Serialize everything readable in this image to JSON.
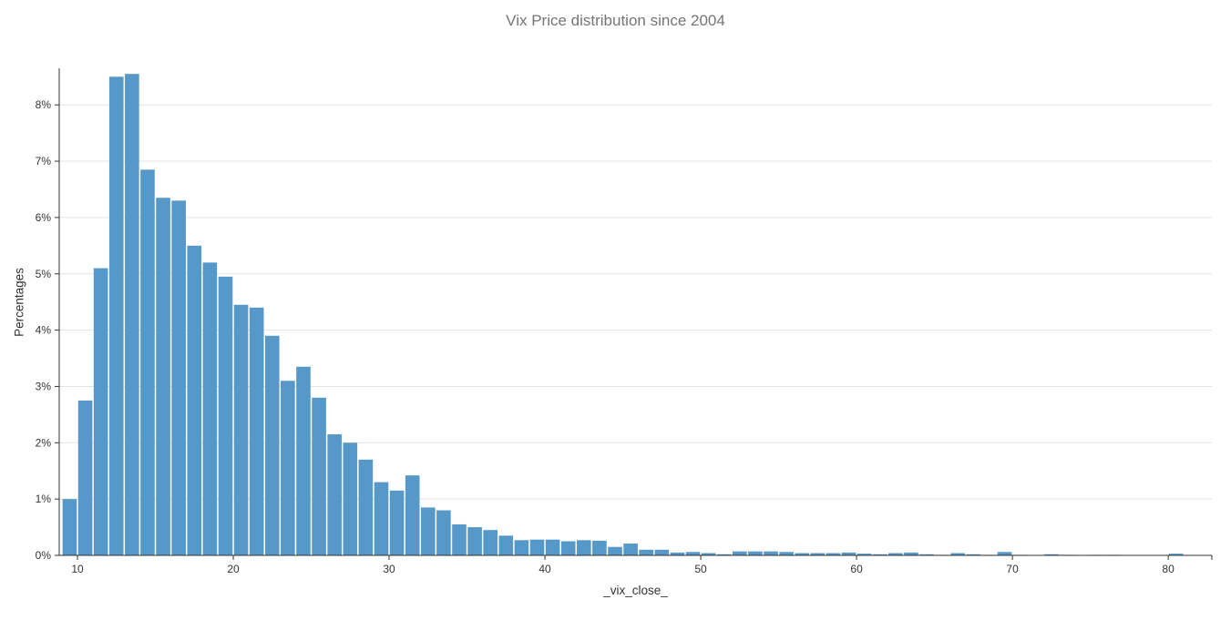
{
  "page": {
    "background": "#ffffff"
  },
  "chart_data": {
    "type": "bar",
    "subtype": "histogram",
    "title": "Vix Price distribution since 2004",
    "xlabel": "_vix_close_",
    "ylabel": "Percentages",
    "legend": "none",
    "grid": "horizontal",
    "bins_start": 9,
    "bin_width": 1,
    "values_percent": [
      1.0,
      2.75,
      5.1,
      8.5,
      8.55,
      6.85,
      6.35,
      6.3,
      5.5,
      5.2,
      4.95,
      4.45,
      4.4,
      3.9,
      3.1,
      3.35,
      2.8,
      2.15,
      2.0,
      1.7,
      1.3,
      1.15,
      1.42,
      0.85,
      0.8,
      0.55,
      0.5,
      0.45,
      0.35,
      0.27,
      0.28,
      0.28,
      0.25,
      0.27,
      0.26,
      0.15,
      0.21,
      0.1,
      0.1,
      0.05,
      0.06,
      0.04,
      0.02,
      0.07,
      0.07,
      0.07,
      0.06,
      0.04,
      0.04,
      0.04,
      0.05,
      0.03,
      0.02,
      0.04,
      0.05,
      0.02,
      0.01,
      0.04,
      0.02,
      0.01,
      0.06,
      0.01,
      0.0,
      0.02,
      0.01,
      0.0,
      0.01,
      0.01,
      0.0,
      0.0,
      0.0,
      0.03
    ],
    "x_ticks": [
      10,
      20,
      30,
      40,
      50,
      60,
      70,
      80
    ],
    "y_ticks_percent": [
      0,
      1,
      2,
      3,
      4,
      5,
      6,
      7,
      8
    ],
    "y_tick_suffix": "%",
    "xlim": [
      8.83,
      82.8
    ],
    "ylim": [
      0,
      8.65
    ],
    "bar_color": "#5699c8",
    "title_color": "#757575",
    "axis_color": "#333333",
    "grid_color": "#e3e3e3",
    "tick_label_color": "#333333"
  }
}
